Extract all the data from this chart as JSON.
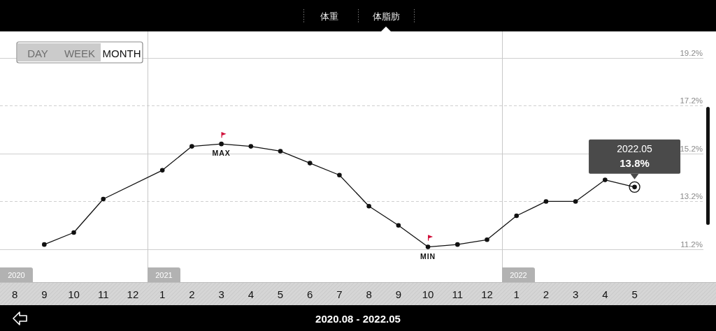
{
  "chart_data": {
    "type": "line",
    "title": "体脂肪",
    "subtitle": "2020.08 - 2022.05",
    "x": [
      "2020-09",
      "2020-10",
      "2020-11",
      "2021-01",
      "2021-02",
      "2021-03",
      "2021-04",
      "2021-05",
      "2021-06",
      "2021-07",
      "2021-08",
      "2021-09",
      "2021-10",
      "2021-11",
      "2021-12",
      "2022-01",
      "2022-02",
      "2022-03",
      "2022-04",
      "2022-05"
    ],
    "series": [
      {
        "color": "#111111",
        "values": [
          11.4,
          11.9,
          13.3,
          14.5,
          15.5,
          15.6,
          15.5,
          15.3,
          14.8,
          14.3,
          13.0,
          12.2,
          11.3,
          11.4,
          11.6,
          12.6,
          13.2,
          13.2,
          14.1,
          13.8
        ]
      }
    ],
    "xlim": [
      "2020-07-16T12:00",
      "2022-07-11T07:00"
    ],
    "xticks": [
      {
        "value": "2020-08",
        "label": "8"
      },
      {
        "value": "2020-09",
        "label": "9"
      },
      {
        "value": "2020-10",
        "label": "10"
      },
      {
        "value": "2020-11",
        "label": "11"
      },
      {
        "value": "2020-12",
        "label": "12"
      },
      {
        "value": "2021-01",
        "label": "1"
      },
      {
        "value": "2021-02",
        "label": "2"
      },
      {
        "value": "2021-03",
        "label": "3"
      },
      {
        "value": "2021-04",
        "label": "4"
      },
      {
        "value": "2021-05",
        "label": "5"
      },
      {
        "value": "2021-06",
        "label": "6"
      },
      {
        "value": "2021-07",
        "label": "7"
      },
      {
        "value": "2021-08",
        "label": "8"
      },
      {
        "value": "2021-09",
        "label": "9"
      },
      {
        "value": "2021-10",
        "label": "10"
      },
      {
        "value": "2021-11",
        "label": "11"
      },
      {
        "value": "2021-12",
        "label": "12"
      },
      {
        "value": "2022-01",
        "label": "1"
      },
      {
        "value": "2022-02",
        "label": "2"
      },
      {
        "value": "2022-03",
        "label": "3"
      },
      {
        "value": "2022-04",
        "label": "4"
      },
      {
        "value": "2022-05",
        "label": "5"
      }
    ],
    "ylim": [
      9.83,
      20.3
    ],
    "yticks": [
      {
        "value": 11.2,
        "label": "11.2%"
      },
      {
        "value": 13.2,
        "label": "13.2%"
      },
      {
        "value": 15.2,
        "label": "15.2%"
      },
      {
        "value": 17.2,
        "label": "17.2%"
      },
      {
        "value": 19.2,
        "label": "19.2%"
      }
    ],
    "grid": "y",
    "marker": "circle",
    "line_style": "solid",
    "ref_lines": [
      {
        "axis": "x",
        "value": "2020-12-16T12:00",
        "label": "2021"
      },
      {
        "axis": "x",
        "value": "2021-12-16T12:00",
        "label": "2022"
      }
    ],
    "annotations": [
      "2020",
      "体重",
      "DAY",
      "WEEK",
      "MONTH",
      {
        "text": "MAX",
        "x": "2021-03",
        "y": 15.6
      },
      {
        "text": "MIN",
        "x": "2021-10",
        "y": 11.3
      },
      {
        "text": "2022.05\n13.8%",
        "x": "2022-05",
        "y": 13.8
      }
    ]
  }
}
